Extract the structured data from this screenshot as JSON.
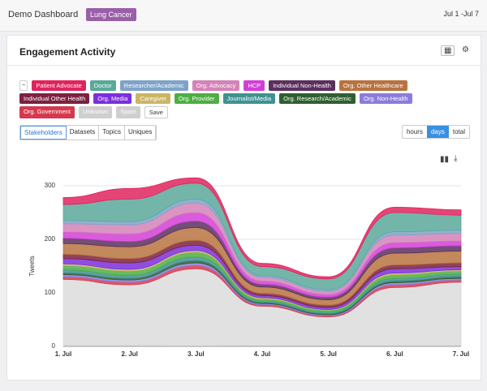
{
  "header": {
    "title": "Demo Dashboard",
    "tag": "Lung Cancer",
    "date_range": "Jul 1 -Jul 7"
  },
  "card": {
    "title": "Engagement Activity",
    "legend_save": "Save",
    "tabs": [
      "Stakeholders",
      "Datasets",
      "Topics",
      "Uniques"
    ],
    "views": [
      "hours",
      "days",
      "total"
    ]
  },
  "chart_data": {
    "type": "stacked-area",
    "categories": [
      "1. Jul",
      "2. Jul",
      "3. Jul",
      "4. Jul",
      "5. Jul",
      "6. Jul",
      "7. Jul"
    ],
    "ylabel": "Tweets",
    "ylim": [
      0,
      300
    ],
    "yticks": [
      0,
      100,
      200,
      300
    ],
    "grid": true,
    "series": [
      {
        "name": "Patient Advocate",
        "color": "#e0245e",
        "values": [
          13,
          20,
          10,
          6,
          4,
          10,
          10
        ]
      },
      {
        "name": "Doctor",
        "color": "#5aa99a",
        "values": [
          30,
          42,
          30,
          17,
          20,
          36,
          28
        ]
      },
      {
        "name": "Researcher/Academic",
        "color": "#7fa3c8",
        "values": [
          6,
          6,
          7,
          3,
          3,
          6,
          6
        ]
      },
      {
        "name": "Org. Advocacy",
        "color": "#d483b8",
        "values": [
          15,
          17,
          18,
          7,
          6,
          14,
          14
        ]
      },
      {
        "name": "HCP",
        "color": "#d23fd6",
        "values": [
          12,
          14,
          16,
          6,
          5,
          10,
          9
        ]
      },
      {
        "name": "Individual Non-Health",
        "color": "#5b2f5e",
        "values": [
          10,
          10,
          12,
          5,
          5,
          10,
          10
        ]
      },
      {
        "name": "Org. Other Healthcare",
        "color": "#b87340",
        "values": [
          20,
          22,
          24,
          12,
          10,
          22,
          22
        ]
      },
      {
        "name": "Individual Other Health",
        "color": "#7c2140",
        "values": [
          8,
          8,
          9,
          4,
          4,
          7,
          7
        ]
      },
      {
        "name": "Org. Media",
        "color": "#7b2fdc",
        "values": [
          10,
          12,
          10,
          4,
          4,
          8,
          6
        ]
      },
      {
        "name": "Caregiver",
        "color": "#cbb565",
        "values": [
          3,
          3,
          3,
          2,
          1,
          3,
          2
        ]
      },
      {
        "name": "Org. Provider",
        "color": "#4eae43",
        "values": [
          8,
          8,
          9,
          4,
          4,
          7,
          6
        ]
      },
      {
        "name": "Journalist/Media",
        "color": "#3f9191",
        "values": [
          6,
          6,
          7,
          3,
          3,
          5,
          5
        ]
      },
      {
        "name": "Org. Research/Academic",
        "color": "#2f5f30",
        "values": [
          3,
          3,
          4,
          2,
          2,
          3,
          3
        ]
      },
      {
        "name": "Org. Non-Health",
        "color": "#8b7cdb",
        "values": [
          4,
          4,
          5,
          2,
          2,
          4,
          3
        ]
      },
      {
        "name": "Org. Government",
        "color": "#d6394d",
        "values": [
          5,
          5,
          6,
          3,
          2,
          5,
          4
        ]
      },
      {
        "name": "Unknown",
        "color": "#dcdcdc",
        "values": [
          123,
          113,
          142,
          74,
          54,
          108,
          118
        ]
      },
      {
        "name": "Spam",
        "color": "#e6e6e6",
        "values": [
          2,
          2,
          3,
          1,
          1,
          2,
          2
        ]
      }
    ]
  }
}
